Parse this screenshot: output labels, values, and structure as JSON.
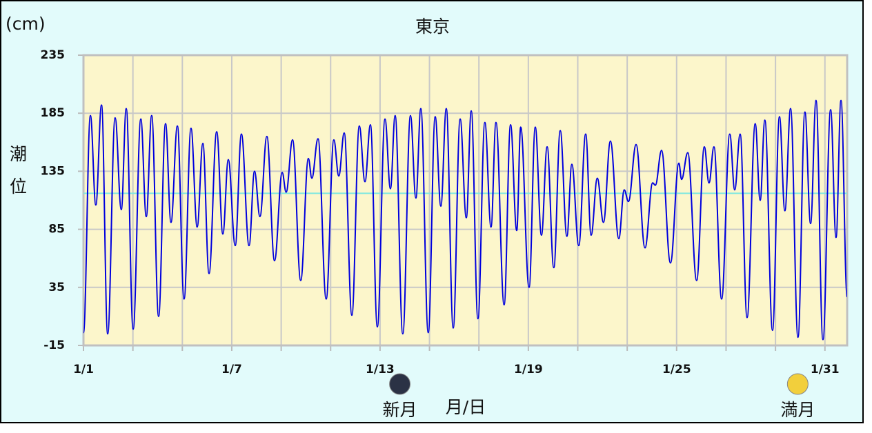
{
  "chart_data": {
    "type": "line",
    "title": "東京",
    "y_unit": "(cm)",
    "y_label": "潮位",
    "x_label": "月/日",
    "xlim": [
      0,
      30.9
    ],
    "xticks": [
      {
        "value": 0,
        "label": "1/1"
      },
      {
        "value": 6,
        "label": "1/7"
      },
      {
        "value": 12,
        "label": "1/13"
      },
      {
        "value": 18,
        "label": "1/19"
      },
      {
        "value": 24,
        "label": "1/25"
      },
      {
        "value": 30,
        "label": "1/31"
      }
    ],
    "xgrid": [
      2,
      4,
      8,
      10,
      14,
      16,
      20,
      22,
      26,
      28
    ],
    "ylim": [
      -15,
      235
    ],
    "yticks": [
      -15,
      35,
      85,
      135,
      185,
      235
    ],
    "grid": true,
    "reference_line": {
      "value": 116,
      "color": "#7fe8e0"
    },
    "series": [
      {
        "name": "潮位",
        "color": "#0000dd",
        "x": [
          0,
          0.28,
          0.5,
          0.73,
          0.98,
          1.28,
          1.53,
          1.73,
          2.01,
          2.32,
          2.54,
          2.76,
          3.04,
          3.32,
          3.54,
          3.8,
          4.07,
          4.35,
          4.6,
          4.83,
          5.08,
          5.39,
          5.64,
          5.86,
          6.14,
          6.39,
          6.7,
          6.92,
          7.14,
          7.42,
          7.73,
          8.04,
          8.2,
          8.46,
          8.79,
          9.1,
          9.24,
          9.49,
          9.82,
          10.13,
          10.33,
          10.55,
          10.86,
          11.16,
          11.39,
          11.61,
          11.89,
          12.2,
          12.42,
          12.61,
          12.92,
          13.23,
          13.45,
          13.65,
          13.95,
          14.23,
          14.46,
          14.68,
          14.96,
          15.24,
          15.49,
          15.69,
          15.96,
          16.24,
          16.49,
          16.69,
          17.02,
          17.28,
          17.53,
          17.69,
          18.03,
          18.28,
          18.53,
          18.76,
          19.03,
          19.29,
          19.56,
          19.76,
          20.04,
          20.32,
          20.54,
          20.79,
          21.04,
          21.32,
          21.66,
          21.88,
          22.05,
          22.36,
          22.72,
          23.03,
          23.14,
          23.39,
          23.75,
          24.09,
          24.2,
          24.45,
          24.81,
          25.12,
          25.31,
          25.51,
          25.82,
          26.15,
          26.35,
          26.57,
          26.85,
          27.18,
          27.38,
          27.57,
          27.88,
          28.16,
          28.38,
          28.61,
          28.91,
          29.19,
          29.42,
          29.64,
          29.92,
          30.23,
          30.45,
          30.65,
          30.9
        ],
        "values": [
          -4,
          183,
          106,
          192,
          -5,
          181,
          102,
          189,
          -1,
          180,
          96,
          183,
          10,
          176,
          91,
          174,
          25,
          172,
          87,
          159,
          47,
          169,
          81,
          145,
          71,
          167,
          71,
          135,
          96,
          165,
          58,
          134,
          117,
          162,
          41,
          146,
          129,
          163,
          25,
          162,
          131,
          168,
          11,
          174,
          126,
          175,
          1,
          180,
          120,
          183,
          -5,
          183,
          112,
          189,
          -4,
          182,
          105,
          189,
          0,
          180,
          95,
          187,
          8,
          177,
          87,
          177,
          20,
          175,
          84,
          173,
          35,
          173,
          80,
          156,
          52,
          170,
          79,
          141,
          71,
          167,
          80,
          129,
          91,
          161,
          77,
          119,
          109,
          158,
          69,
          125,
          123,
          153,
          56,
          142,
          128,
          151,
          41,
          156,
          125,
          156,
          25,
          167,
          119,
          167,
          9,
          176,
          110,
          179,
          -2,
          182,
          101,
          189,
          -8,
          186,
          90,
          196,
          -10,
          188,
          78,
          196,
          27
        ]
      }
    ],
    "moon_phases": [
      {
        "label": "新月",
        "x": 12.8,
        "color": "#2b3245"
      },
      {
        "label": "満月",
        "x": 28.9,
        "color": "#f2cf3c"
      }
    ]
  }
}
